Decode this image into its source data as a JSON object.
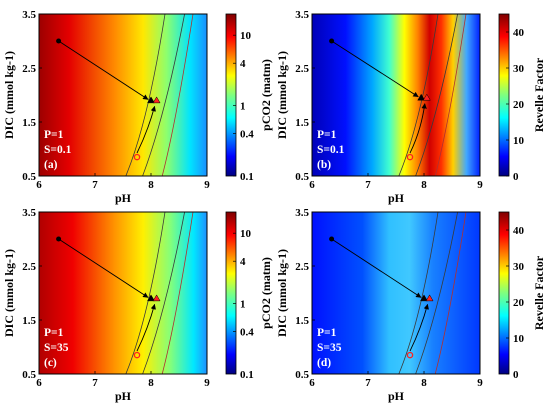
{
  "chart_data": [
    {
      "type": "heatmap",
      "panel": "(a)",
      "xlabel": "pH",
      "ylabel": "DIC (mmol kg-1)",
      "xlim": [
        6,
        9
      ],
      "ylim": [
        0.5,
        3.5
      ],
      "xticks": [
        "6",
        "7",
        "8",
        "9"
      ],
      "yticks": [
        "0.5",
        "1.5",
        "2.5",
        "3.5"
      ],
      "colorbar": {
        "label": "pCO2 (matm)",
        "scale": "log",
        "ticks": [
          "0.1",
          "0.4",
          "1",
          "4",
          "10"
        ]
      },
      "annotations": [
        "P=1",
        "S=0.1"
      ],
      "points": [
        {
          "name": "black circle",
          "x": 6.35,
          "y": 3.0
        },
        {
          "name": "black triangle",
          "x": 8.0,
          "y": 1.9
        },
        {
          "name": "red circle",
          "x": 7.75,
          "y": 0.85
        },
        {
          "name": "red triangle",
          "x": 8.1,
          "y": 1.9
        }
      ]
    },
    {
      "type": "heatmap",
      "panel": "(b)",
      "xlabel": "pH",
      "ylabel": "DIC (mmol kg-1)",
      "xlim": [
        6,
        9
      ],
      "ylim": [
        0.5,
        3.5
      ],
      "xticks": [
        "6",
        "7",
        "8",
        "9"
      ],
      "yticks": [
        "0.5",
        "1.5",
        "2.5",
        "3.5"
      ],
      "colorbar": {
        "label": "Revelle Factor",
        "scale": "linear",
        "ticks": [
          "0",
          "10",
          "20",
          "30",
          "40"
        ]
      },
      "annotations": [
        "P=1",
        "S=0.1"
      ],
      "points": [
        {
          "name": "black circle",
          "x": 6.35,
          "y": 3.0
        },
        {
          "name": "black triangle",
          "x": 7.95,
          "y": 1.95
        },
        {
          "name": "red circle",
          "x": 7.75,
          "y": 0.85
        },
        {
          "name": "red triangle",
          "x": 8.05,
          "y": 1.95
        }
      ]
    },
    {
      "type": "heatmap",
      "panel": "(c)",
      "xlabel": "pH",
      "ylabel": "DIC (mmol kg-1)",
      "xlim": [
        6,
        9
      ],
      "ylim": [
        0.5,
        3.5
      ],
      "xticks": [
        "6",
        "7",
        "8",
        "9"
      ],
      "yticks": [
        "0.5",
        "1.5",
        "2.5",
        "3.5"
      ],
      "colorbar": {
        "label": "pCO2 (matm)",
        "scale": "log",
        "ticks": [
          "0.1",
          "0.4",
          "1",
          "4",
          "10"
        ]
      },
      "annotations": [
        "P=1",
        "S=35"
      ],
      "points": [
        {
          "name": "black circle",
          "x": 6.35,
          "y": 3.0
        },
        {
          "name": "black triangle",
          "x": 8.0,
          "y": 1.9
        },
        {
          "name": "red circle",
          "x": 7.75,
          "y": 0.85
        },
        {
          "name": "red triangle",
          "x": 8.1,
          "y": 1.9
        }
      ]
    },
    {
      "type": "heatmap",
      "panel": "(d)",
      "xlabel": "pH",
      "ylabel": "DIC (mmol kg-1)",
      "xlim": [
        6,
        9
      ],
      "ylim": [
        0.5,
        3.5
      ],
      "xticks": [
        "6",
        "7",
        "8",
        "9"
      ],
      "yticks": [
        "0.5",
        "1.5",
        "2.5",
        "3.5"
      ],
      "colorbar": {
        "label": "Revelle Factor",
        "scale": "linear",
        "ticks": [
          "0",
          "10",
          "20",
          "30",
          "40"
        ]
      },
      "annotations": [
        "P=1",
        "S=35"
      ],
      "points": [
        {
          "name": "black circle",
          "x": 6.35,
          "y": 3.0
        },
        {
          "name": "black triangle",
          "x": 8.0,
          "y": 1.9
        },
        {
          "name": "red circle",
          "x": 7.75,
          "y": 0.85
        },
        {
          "name": "red triangle",
          "x": 8.1,
          "y": 1.9
        }
      ]
    }
  ],
  "colors": {
    "jet": [
      "#00007f",
      "#0000ff",
      "#007fff",
      "#00ffff",
      "#7fff7f",
      "#ffff00",
      "#ff7f00",
      "#ff0000",
      "#7f0000"
    ],
    "marker_black": "#000000",
    "marker_red": "#ff2020",
    "contour": "#3a3a3a"
  }
}
